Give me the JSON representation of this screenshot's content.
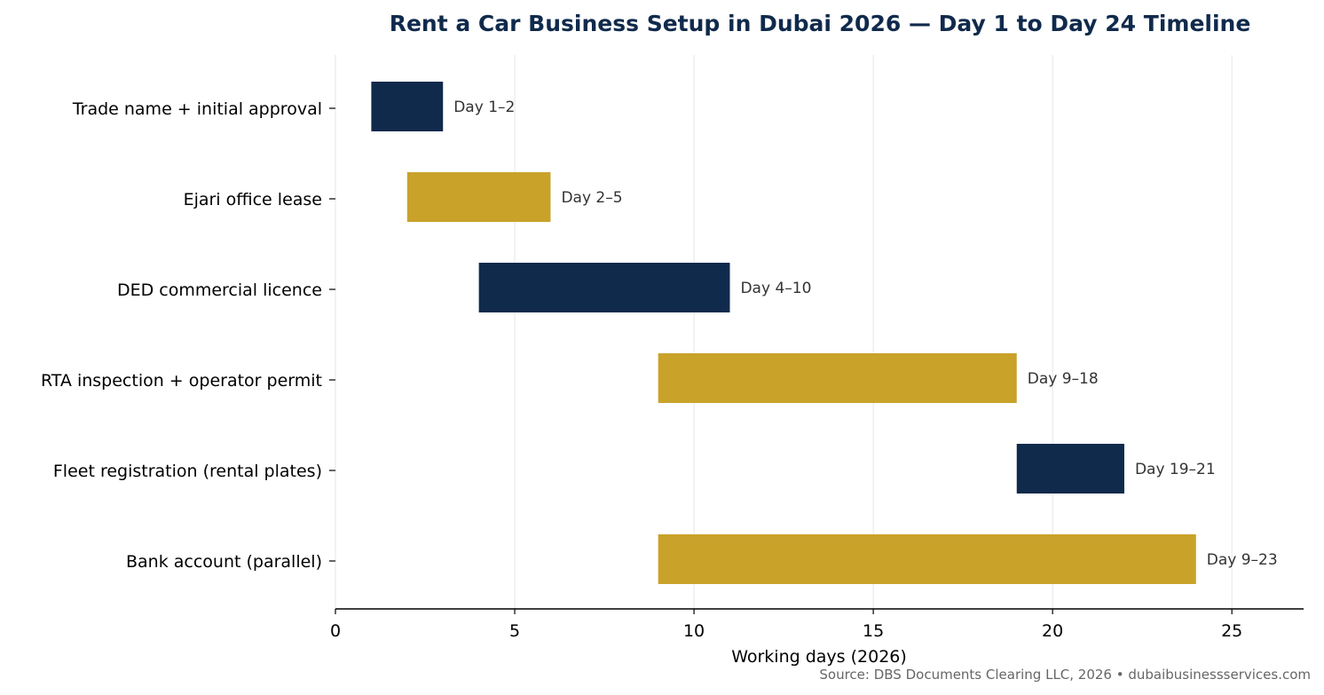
{
  "chart_data": {
    "type": "bar",
    "orientation": "horizontal-gantt",
    "title": "Rent a Car Business Setup in Dubai 2026 — Day 1 to Day 24 Timeline",
    "xlabel": "Working days (2026)",
    "ylabel": "",
    "xlim": [
      0,
      27
    ],
    "xticks": [
      0,
      5,
      10,
      15,
      20,
      25
    ],
    "grid": "vertical",
    "tasks": [
      {
        "name": "Trade name + initial approval",
        "start": 1,
        "end": 3,
        "label": "Day 1–2",
        "color": "#102a4c"
      },
      {
        "name": "Ejari office lease",
        "start": 2,
        "end": 6,
        "label": "Day 2–5",
        "color": "#c9a22a"
      },
      {
        "name": "DED commercial licence",
        "start": 4,
        "end": 11,
        "label": "Day 4–10",
        "color": "#102a4c"
      },
      {
        "name": "RTA inspection + operator permit",
        "start": 9,
        "end": 19,
        "label": "Day 9–18",
        "color": "#c9a22a"
      },
      {
        "name": "Fleet registration (rental plates)",
        "start": 19,
        "end": 22,
        "label": "Day 19–21",
        "color": "#102a4c"
      },
      {
        "name": "Bank account (parallel)",
        "start": 9,
        "end": 24,
        "label": "Day 9–23",
        "color": "#c9a22a"
      }
    ]
  },
  "source": "Source: DBS Documents Clearing LLC, 2026 • dubaibusinessservices.com",
  "colors": {
    "navy": "#102a4c",
    "gold": "#c9a22a",
    "title": "#102a4c",
    "grid": "#e6e6e6"
  }
}
